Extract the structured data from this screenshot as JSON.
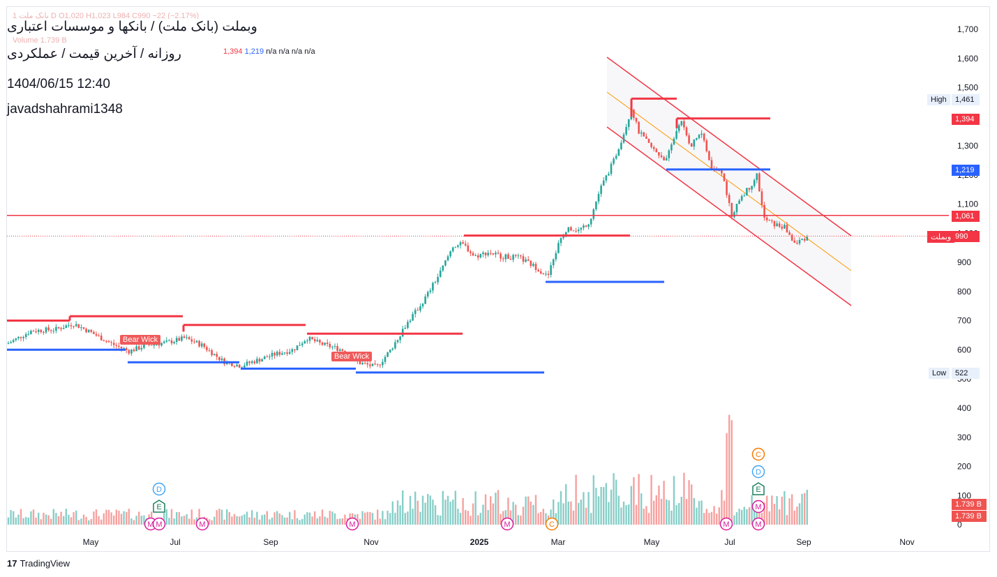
{
  "header": {
    "legend": "1 بانک ملت D O1,020 H1,023 L984 C990 −22 (−2.17%)",
    "volume_label": "Volume 1.739 B",
    "indicator_values": [
      "1,394",
      "1,219",
      "n/a",
      "n/a",
      "n/a",
      "n/a"
    ],
    "title": "وبملت (بانک ملت) / بانکها و موسسات اعتباری",
    "subtitle": "روزانه / آخرین قیمت / عملکردی",
    "datetime": "1404/06/15 12:40",
    "author": "javadshahrami1348"
  },
  "price_axis": {
    "ticks": [
      "1,700",
      "1,600",
      "1,500",
      "1,400",
      "1,300",
      "1,200",
      "1,100",
      "1,000",
      "900",
      "800",
      "700",
      "600",
      "500"
    ],
    "high_label": "High",
    "high_value": "1,461",
    "low_label": "Low",
    "low_value": "522",
    "resistance_value": "1,394",
    "support_value": "1,219",
    "line_value": "1,061",
    "last_symbol": "وبملت",
    "last_value": "990"
  },
  "volume_axis": {
    "ticks": [
      "400",
      "300",
      "200",
      "100",
      "0"
    ],
    "vol_label_1": "1.739 B",
    "vol_label_2": "1.739 B"
  },
  "x_axis": {
    "labels": [
      "May",
      "Jul",
      "Sep",
      "Nov",
      "2025",
      "Mar",
      "May",
      "Jul",
      "Sep",
      "Nov"
    ]
  },
  "annotations": {
    "bear_wick_1": "Bear Wick",
    "bear_wick_2": "Bear Wick"
  },
  "event_markers": [
    {
      "letter": "D",
      "color": "#42a5f5"
    },
    {
      "letter": "E",
      "color": "#1b7f5e"
    },
    {
      "letter": "M",
      "color": "#d81b9b"
    },
    {
      "letter": "C",
      "color": "#f57c00"
    }
  ],
  "branding": "TradingView",
  "colors": {
    "up": "#26a69a",
    "down": "#ef5350",
    "resistance": "#f23645",
    "support": "#2962ff",
    "channel_mid": "#ff9800"
  },
  "chart_data": {
    "type": "candlestick",
    "y_scale": [
      500,
      1700
    ],
    "approx_close_path": [
      {
        "date": "2024-03",
        "close": 620
      },
      {
        "date": "2024-04",
        "close": 690
      },
      {
        "date": "2024-05",
        "close": 640
      },
      {
        "date": "2024-06",
        "close": 590
      },
      {
        "date": "2024-07",
        "close": 640
      },
      {
        "date": "2024-08",
        "close": 560
      },
      {
        "date": "2024-09",
        "close": 590
      },
      {
        "date": "2024-10",
        "close": 640
      },
      {
        "date": "2024-11",
        "close": 560
      },
      {
        "date": "2024-12",
        "close": 720
      },
      {
        "date": "2025-01",
        "close": 960
      },
      {
        "date": "2025-02",
        "close": 900
      },
      {
        "date": "2025-03",
        "close": 1040
      },
      {
        "date": "2025-04",
        "close": 1400
      },
      {
        "date": "2025-05",
        "close": 1300
      },
      {
        "date": "2025-06",
        "close": 1200
      },
      {
        "date": "2025-07",
        "close": 1180
      },
      {
        "date": "2025-08",
        "close": 1020
      },
      {
        "date": "2025-09",
        "close": 990
      }
    ],
    "levels": {
      "high": 1461,
      "low": 522,
      "horizontal_line": 1061
    }
  }
}
